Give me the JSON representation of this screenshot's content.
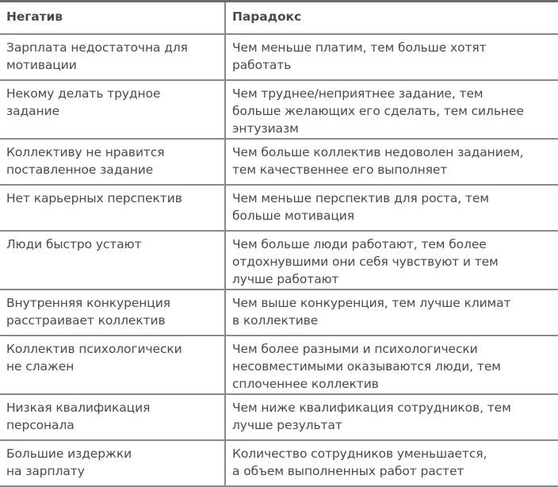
{
  "table": {
    "headers": [
      "Негатив",
      "Парадокс"
    ],
    "rows": [
      [
        "Зарплата недостаточна для\nмотивации",
        "Чем меньше платим, тем больше хотят\nработать"
      ],
      [
        "Некому делать трудное\nзадание",
        "Чем труднее/неприятнее задание, тем\nбольше желающих его сделать, тем сильнее\nэнтузиазм"
      ],
      [
        "Коллективу не нравится\nпоставленное задание",
        "Чем больше коллектив недоволен заданием,\nтем качественнее его выполняет"
      ],
      [
        "Нет карьерных перспектив",
        "Чем меньше перспектив для роста, тем\nбольше мотивация"
      ],
      [
        "Люди быстро устают",
        "Чем больше люди работают, тем более\nотдохнувшими они себя чувствуют и тем\nлучше работают"
      ],
      [
        "Внутренняя конкуренция\nрасстраивает коллектив",
        "Чем выше конкуренция, тем лучше климат\nв коллективе"
      ],
      [
        "Коллектив психологически\nне слажен",
        "Чем более разными и психологически\nнесовместимыми оказываются люди, тем\nсплоченнее коллектив"
      ],
      [
        "Низкая квалификация\nперсонала",
        "Чем ниже квалификация сотрудников, тем\nлучше результат"
      ],
      [
        "Большие издержки\nна зарплату",
        "Количество сотрудников уменьшается,\nа объем выполненных работ растет"
      ]
    ]
  }
}
